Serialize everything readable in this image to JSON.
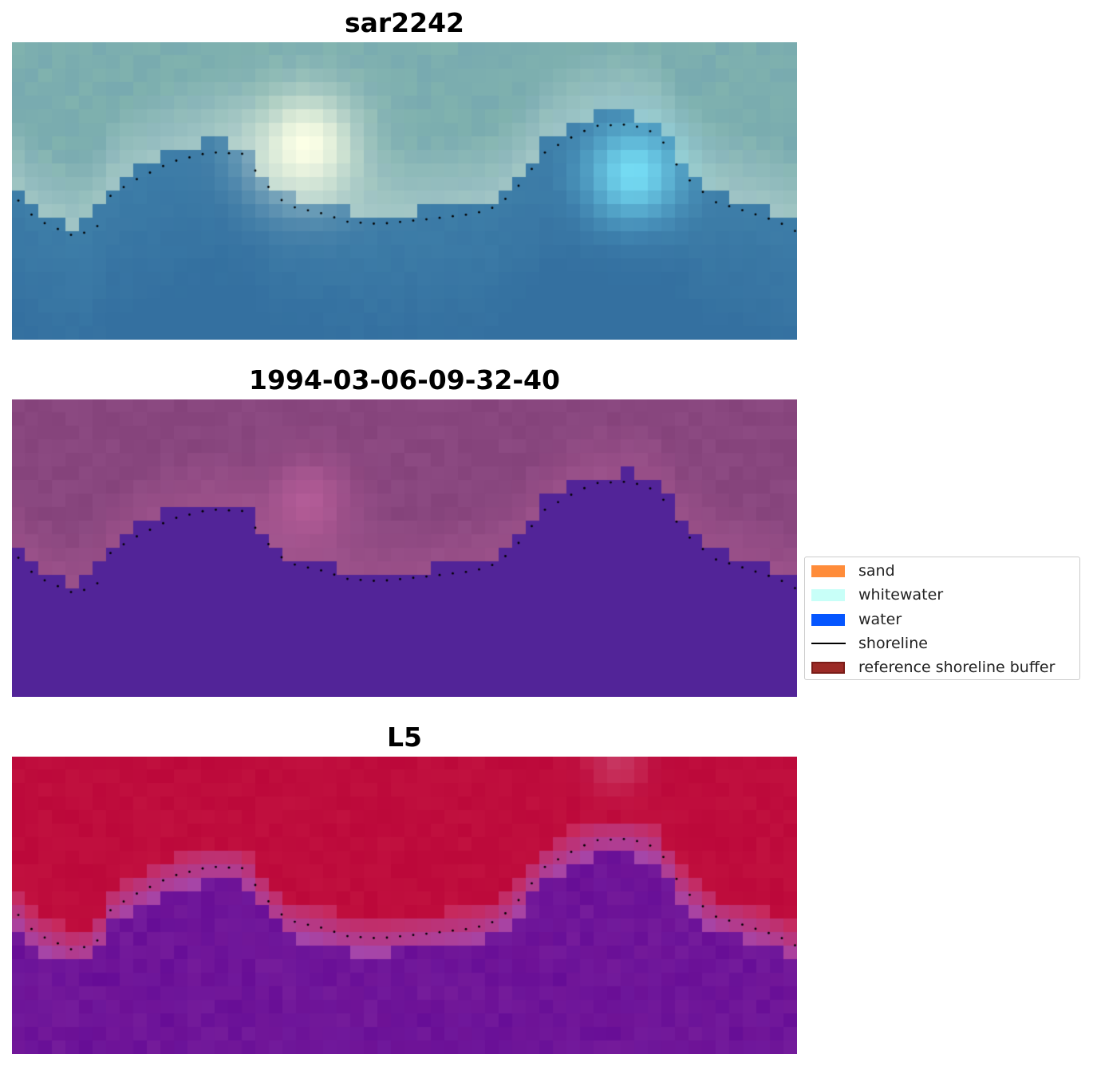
{
  "panels": [
    {
      "title": "sar2242",
      "style": "rgb"
    },
    {
      "title": "1994-03-06-09-32-40",
      "style": "classified"
    },
    {
      "title": "L5",
      "style": "index"
    }
  ],
  "legend": {
    "items": [
      {
        "label": "sand",
        "color": "#ff8c3a",
        "kind": "patch"
      },
      {
        "label": "whitewater",
        "color": "#c8fff8",
        "kind": "patch"
      },
      {
        "label": "water",
        "color": "#0556ff",
        "kind": "patch"
      },
      {
        "label": "shoreline",
        "color": "#000000",
        "kind": "line"
      },
      {
        "label": "reference shoreline buffer",
        "color": "#9b2a26",
        "kind": "patch-bordered"
      }
    ]
  }
}
